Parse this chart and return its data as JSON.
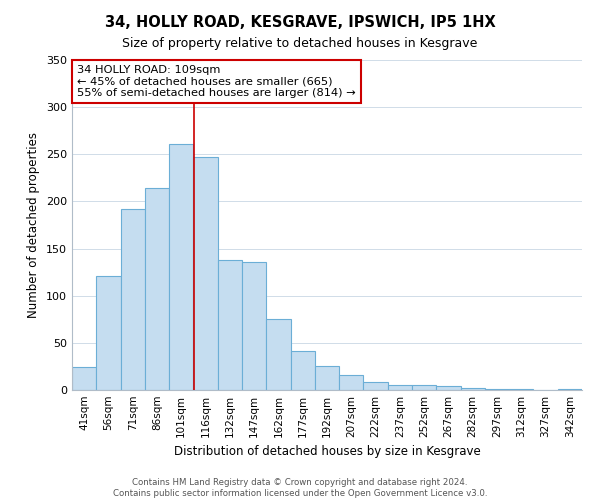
{
  "title": "34, HOLLY ROAD, KESGRAVE, IPSWICH, IP5 1HX",
  "subtitle": "Size of property relative to detached houses in Kesgrave",
  "xlabel": "Distribution of detached houses by size in Kesgrave",
  "ylabel": "Number of detached properties",
  "categories": [
    "41sqm",
    "56sqm",
    "71sqm",
    "86sqm",
    "101sqm",
    "116sqm",
    "132sqm",
    "147sqm",
    "162sqm",
    "177sqm",
    "192sqm",
    "207sqm",
    "222sqm",
    "237sqm",
    "252sqm",
    "267sqm",
    "282sqm",
    "297sqm",
    "312sqm",
    "327sqm",
    "342sqm"
  ],
  "values": [
    24,
    121,
    192,
    214,
    261,
    247,
    138,
    136,
    75,
    41,
    25,
    16,
    9,
    5,
    5,
    4,
    2,
    1,
    1,
    0,
    1
  ],
  "bar_color": "#c5ddf0",
  "bar_edge_color": "#6baed6",
  "marker_label": "34 HOLLY ROAD: 109sqm",
  "annotation_line1": "← 45% of detached houses are smaller (665)",
  "annotation_line2": "55% of semi-detached houses are larger (814) →",
  "annotation_box_color": "#ffffff",
  "annotation_box_edge": "#cc0000",
  "vline_color": "#cc0000",
  "footer_line1": "Contains HM Land Registry data © Crown copyright and database right 2024.",
  "footer_line2": "Contains public sector information licensed under the Open Government Licence v3.0.",
  "ylim": [
    0,
    350
  ],
  "yticks": [
    0,
    50,
    100,
    150,
    200,
    250,
    300,
    350
  ],
  "background_color": "#ffffff",
  "grid_color": "#d0dce8",
  "vline_x_index": 4,
  "vline_x_offset": 0.53
}
